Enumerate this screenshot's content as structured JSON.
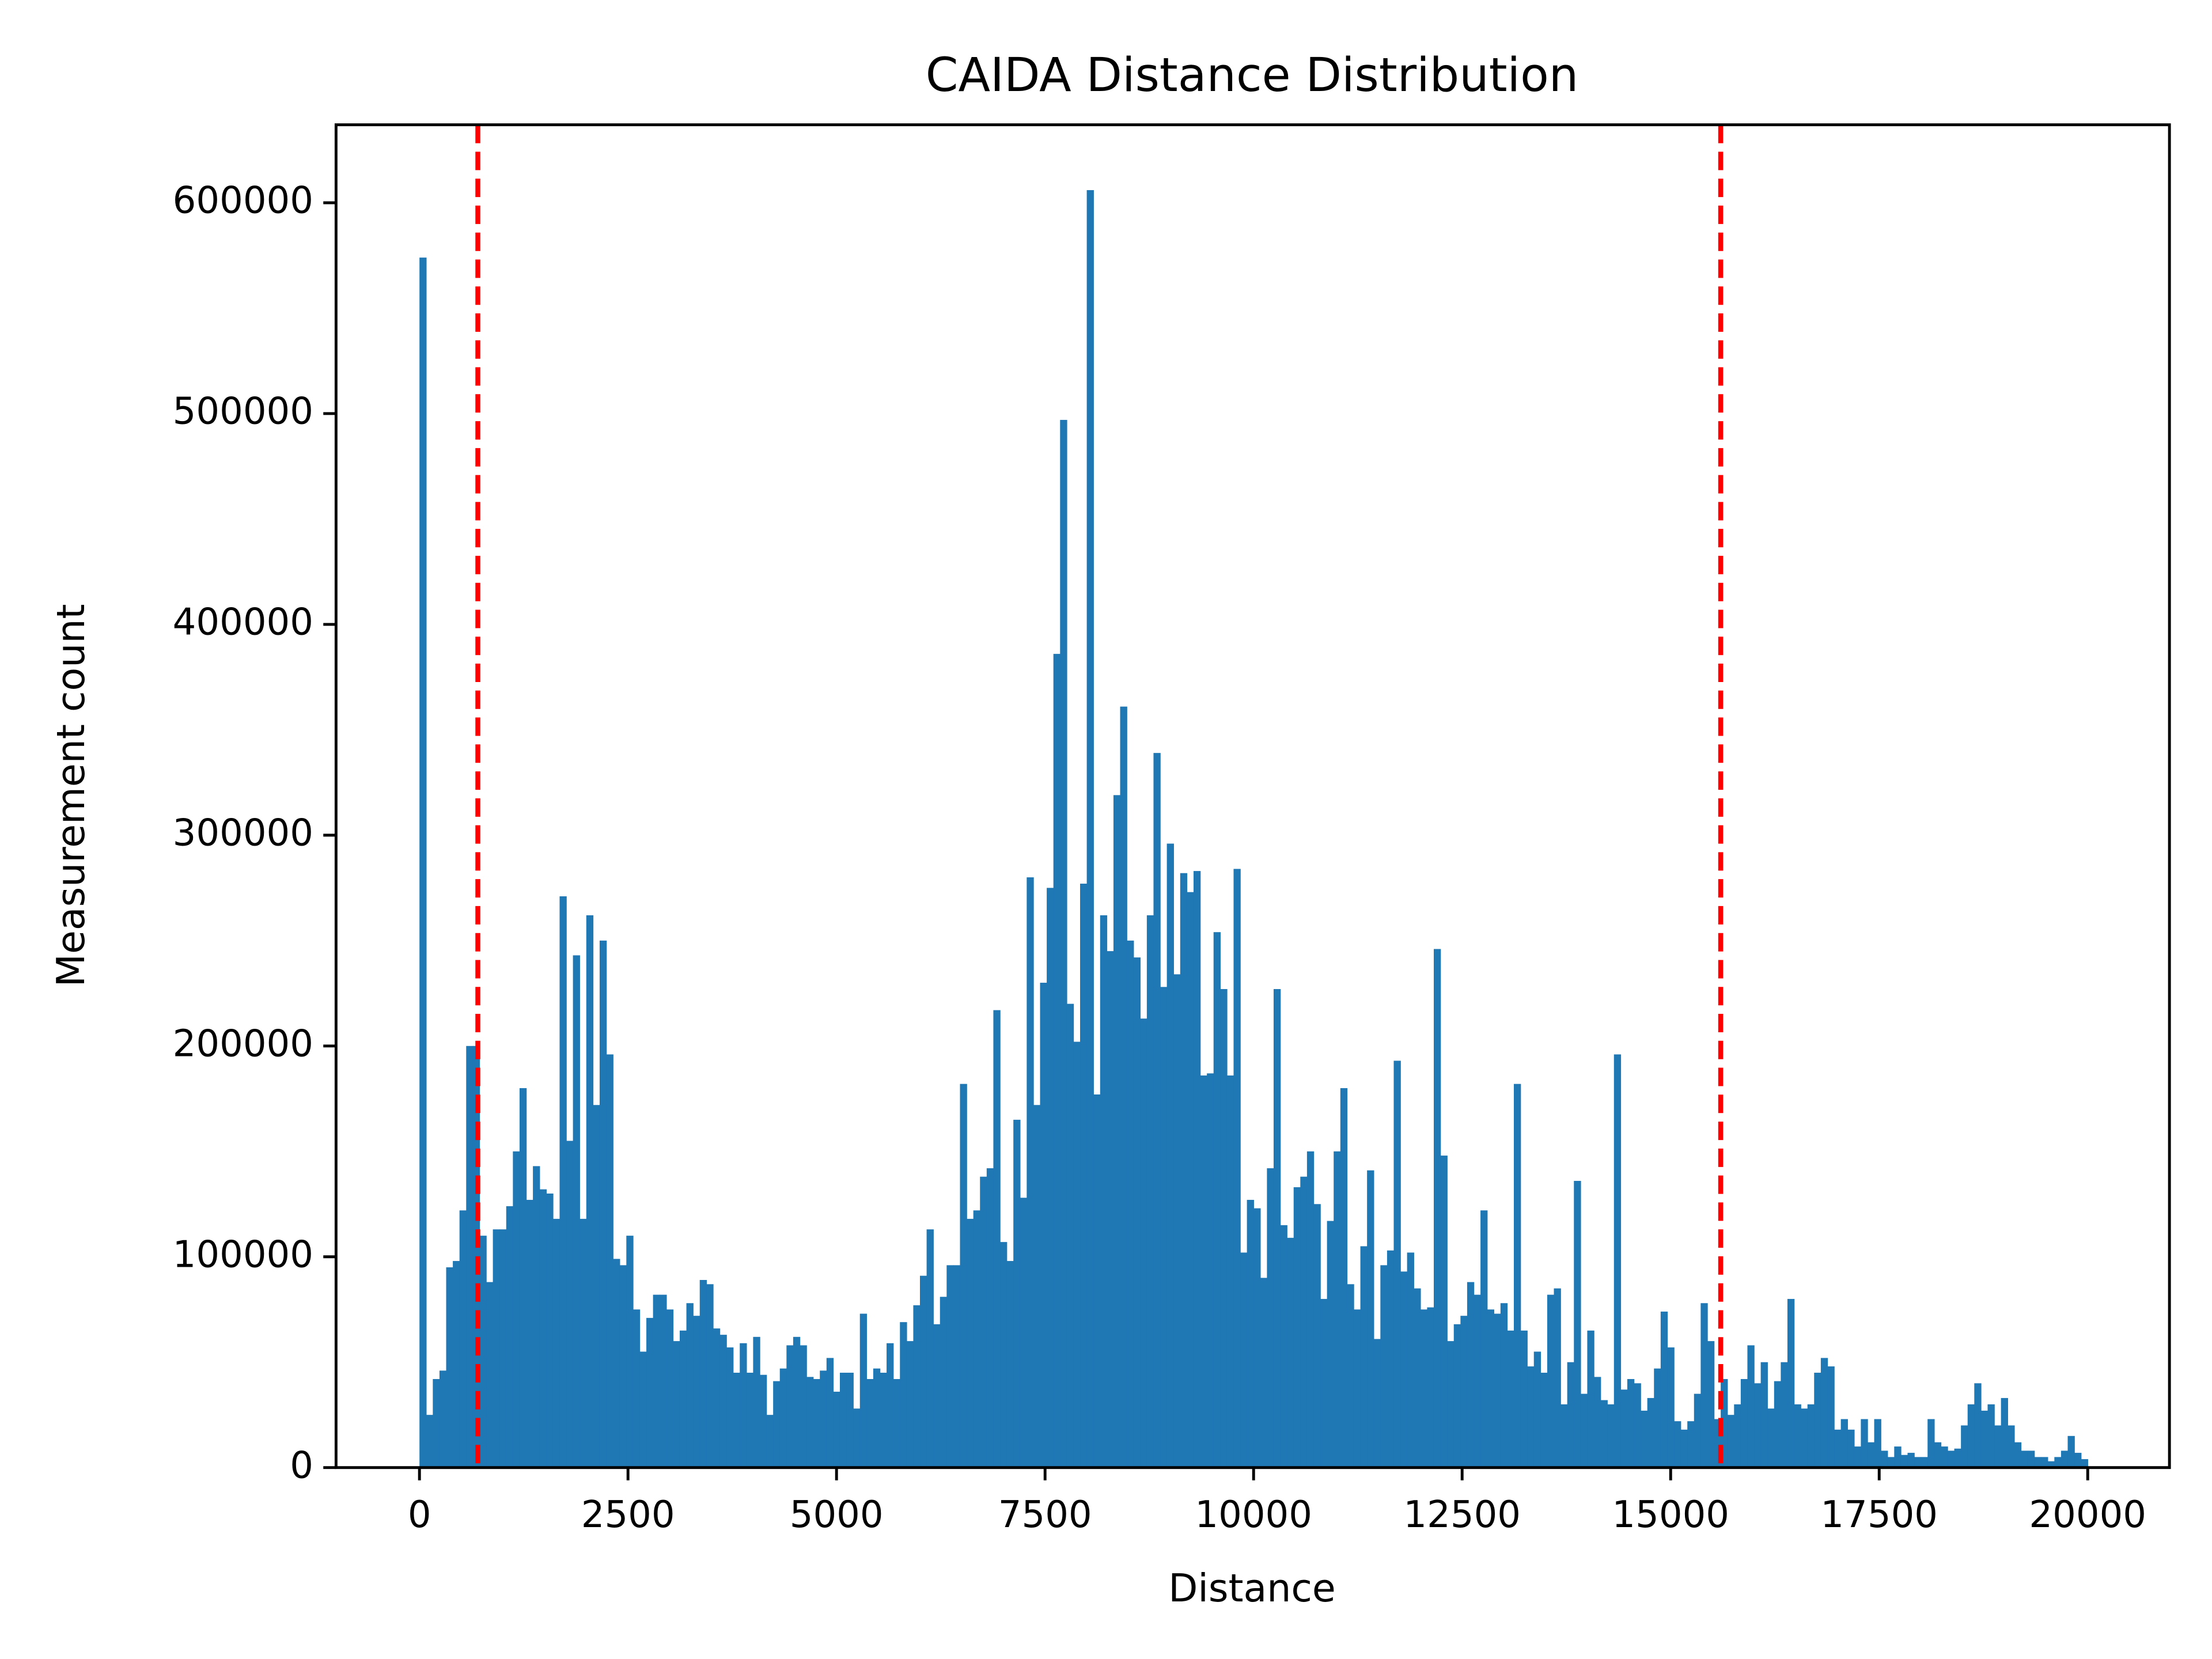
{
  "chart_data": {
    "type": "histogram",
    "title": "CAIDA Distance Distribution",
    "xlabel": "Distance",
    "ylabel": "Measurement count",
    "color": "#1f77b4",
    "bins": [
      0,
      80,
      160,
      240,
      320,
      400,
      480,
      560,
      640,
      720,
      800,
      880,
      960,
      1040,
      1120,
      1200,
      1280,
      1360,
      1440,
      1520,
      1600,
      1680,
      1760,
      1840,
      1920,
      2000,
      2080,
      2160,
      2240,
      2320,
      2400,
      2480,
      2560,
      2640,
      2720,
      2800,
      2880,
      2960,
      3040,
      3120,
      3200,
      3280,
      3360,
      3440,
      3520,
      3600,
      3680,
      3760,
      3840,
      3920,
      4000,
      4080,
      4160,
      4240,
      4320,
      4400,
      4480,
      4560,
      4640,
      4720,
      4800,
      4880,
      4960,
      5040,
      5120,
      5200,
      5280,
      5360,
      5440,
      5520,
      5600,
      5680,
      5760,
      5840,
      5920,
      6000,
      6080,
      6160,
      6240,
      6320,
      6400,
      6480,
      6560,
      6640,
      6720,
      6800,
      6880,
      6960,
      7040,
      7120,
      7200,
      7280,
      7360,
      7440,
      7520,
      7600,
      7680,
      7760,
      7840,
      7920,
      8000,
      8080,
      8160,
      8240,
      8320,
      8400,
      8480,
      8560,
      8640,
      8720,
      8800,
      8880,
      8960,
      9040,
      9120,
      9200,
      9280,
      9360,
      9440,
      9520,
      9600,
      9680,
      9760,
      9840,
      9920,
      10000,
      10080,
      10160,
      10240,
      10320,
      10400,
      10480,
      10560,
      10640,
      10720,
      10800,
      10880,
      10960,
      11040,
      11120,
      11200,
      11280,
      11360,
      11440,
      11520,
      11600,
      11680,
      11760,
      11840,
      11920,
      12000,
      12080,
      12160,
      12240,
      12320,
      12400,
      12480,
      12560,
      12640,
      12720,
      12800,
      12880,
      12960,
      13040,
      13120,
      13200,
      13280,
      13360,
      13440,
      13520,
      13600,
      13680,
      13760,
      13840,
      13920,
      14000,
      14080,
      14160,
      14240,
      14320,
      14400,
      14480,
      14560,
      14640,
      14720,
      14800,
      14880,
      14960,
      15040,
      15120,
      15200,
      15280,
      15360,
      15440,
      15520,
      15600,
      15680,
      15760,
      15840,
      15920,
      16000,
      16080,
      16160,
      16240,
      16320,
      16400,
      16480,
      16560,
      16640,
      16720,
      16800,
      16880,
      16960,
      17040,
      17120,
      17200,
      17280,
      17360,
      17440,
      17520,
      17600,
      17680,
      17760,
      17840,
      17920,
      18000,
      18080,
      18160,
      18240,
      18320,
      18400,
      18480,
      18560,
      18640,
      18720,
      18800,
      18880,
      18960,
      19040,
      19120,
      19200,
      19280,
      19360,
      19440,
      19520,
      19600,
      19680,
      19760,
      19840,
      19920,
      20000
    ],
    "values": [
      574000,
      25000,
      42000,
      46000,
      95000,
      98000,
      122000,
      200000,
      200000,
      110000,
      88000,
      113000,
      113000,
      124000,
      150000,
      180000,
      127000,
      143000,
      132000,
      130000,
      118000,
      271000,
      155000,
      243000,
      118000,
      262000,
      172000,
      250000,
      196000,
      99000,
      96000,
      110000,
      75000,
      55000,
      71000,
      82000,
      82000,
      75000,
      60000,
      65000,
      78000,
      72000,
      89000,
      87000,
      66000,
      63000,
      57000,
      45000,
      59000,
      45000,
      62000,
      44000,
      25000,
      41000,
      47000,
      58000,
      62000,
      58000,
      43000,
      42000,
      46000,
      52000,
      36000,
      45000,
      45000,
      28000,
      73000,
      42000,
      47000,
      45000,
      59000,
      42000,
      69000,
      60000,
      77000,
      91000,
      113000,
      68000,
      81000,
      96000,
      96000,
      182000,
      118000,
      122000,
      138000,
      142000,
      217000,
      107000,
      98000,
      165000,
      128000,
      280000,
      172000,
      230000,
      275000,
      386000,
      497000,
      220000,
      202000,
      277000,
      606000,
      177000,
      262000,
      245000,
      319000,
      361000,
      250000,
      242000,
      213000,
      262000,
      339000,
      228000,
      296000,
      234000,
      282000,
      273000,
      283000,
      186000,
      187000,
      254000,
      227000,
      186000,
      284000,
      102000,
      127000,
      123000,
      90000,
      142000,
      227000,
      115000,
      109000,
      133000,
      138000,
      150000,
      125000,
      80000,
      117000,
      150000,
      180000,
      87000,
      75000,
      105000,
      141000,
      61000,
      96000,
      103000,
      193000,
      93000,
      102000,
      85000,
      75000,
      76000,
      246000,
      148000,
      60000,
      68000,
      72000,
      88000,
      82000,
      122000,
      75000,
      73000,
      78000,
      65000,
      182000,
      65000,
      48000,
      55000,
      45000,
      82000,
      85000,
      30000,
      50000,
      136000,
      35000,
      65000,
      43000,
      32000,
      30000,
      196000,
      37000,
      42000,
      40000,
      27000,
      33000,
      47000,
      74000,
      57000,
      22000,
      18000,
      22000,
      35000,
      78000,
      60000,
      23000,
      42000,
      25000,
      30000,
      42000,
      58000,
      40000,
      50000,
      28000,
      41000,
      50000,
      80000,
      30000,
      28000,
      30000,
      45000,
      52000,
      48000,
      18000,
      23000,
      18000,
      10000,
      23000,
      12000,
      23000,
      8000,
      5000,
      10000,
      6000,
      7000,
      5000,
      5000,
      23000,
      12000,
      10000,
      8000,
      9000,
      20000,
      30000,
      40000,
      27000,
      30000,
      20000,
      33000,
      20000,
      12000,
      8000,
      8000,
      5000,
      5000,
      3000,
      5000,
      8000,
      15000,
      7000,
      4000
    ],
    "vlines": [
      700,
      15600
    ],
    "vline_color": "#ff0000",
    "xlim": [
      -1000,
      20980
    ],
    "ylim": [
      0,
      637000
    ],
    "xticks": [
      0,
      2500,
      5000,
      7500,
      10000,
      12500,
      15000,
      17500,
      20000
    ],
    "yticks": [
      0,
      100000,
      200000,
      300000,
      400000,
      500000,
      600000
    ]
  }
}
